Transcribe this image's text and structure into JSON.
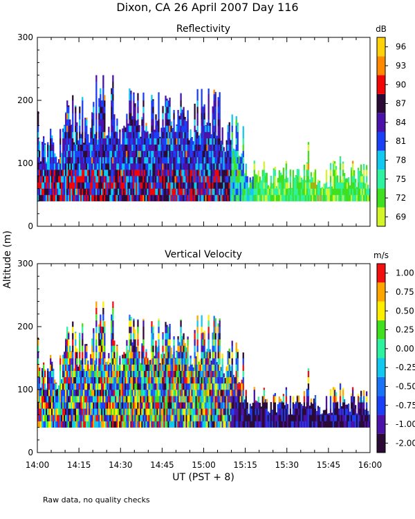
{
  "header": {
    "title": "Dixon, CA 26 April 2007  Day 116"
  },
  "footer": {
    "note": "Raw data, no quality checks"
  },
  "chart_data": [
    {
      "type": "heatmap",
      "title": "Reflectivity",
      "ylabel": "Altitude (m)",
      "xlabel": "UT  (PST + 8)",
      "x_range": [
        "14:00",
        "16:00"
      ],
      "x_ticks": [
        "14:00",
        "14:15",
        "14:30",
        "14:45",
        "15:00",
        "15:15",
        "15:30",
        "15:45",
        "16:00"
      ],
      "ylim": [
        0,
        300
      ],
      "y_ticks": [
        0,
        100,
        200,
        300
      ],
      "colorbar": {
        "unit": "dB",
        "labels": [
          "69",
          "72",
          "75",
          "78",
          "81",
          "84",
          "87",
          "90",
          "93",
          "96"
        ],
        "colors": [
          "#d4f52a",
          "#40e020",
          "#2ef2a0",
          "#12c8ef",
          "#1a3ff5",
          "#4a12a8",
          "#2b0b36",
          "#f00606",
          "#ff8a00",
          "#ffd20c"
        ]
      }
    },
    {
      "type": "heatmap",
      "title": "Vertical Velocity",
      "ylabel": "Altitude (m)",
      "xlabel": "UT  (PST + 8)",
      "x_range": [
        "14:00",
        "16:00"
      ],
      "x_ticks": [
        "14:00",
        "14:15",
        "14:30",
        "14:45",
        "15:00",
        "15:15",
        "15:30",
        "15:45",
        "16:00"
      ],
      "ylim": [
        0,
        300
      ],
      "y_ticks": [
        0,
        100,
        200,
        300
      ],
      "colorbar": {
        "unit": "m/s",
        "labels": [
          "-2.00",
          "-1.00",
          "-0.75",
          "-0.50",
          "-0.25",
          "0.00",
          "0.25",
          "0.50",
          "0.75",
          "1.00"
        ],
        "colors": [
          "#2b0b36",
          "#4a12a8",
          "#1a3ff5",
          "#1a72f5",
          "#12c8ef",
          "#2ef2a0",
          "#40e020",
          "#ffee00",
          "#ffa500",
          "#f01010"
        ]
      }
    }
  ]
}
